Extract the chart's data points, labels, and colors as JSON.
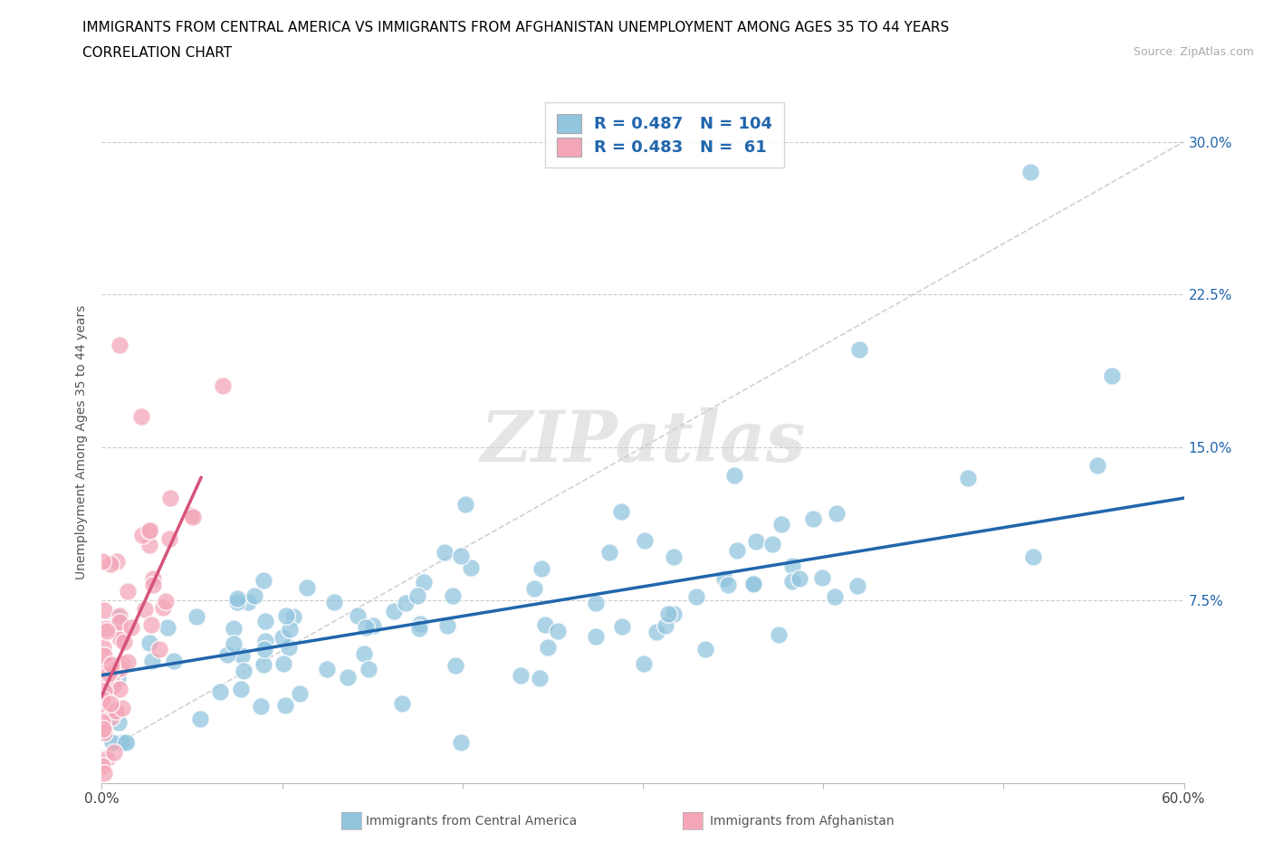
{
  "title_line1": "IMMIGRANTS FROM CENTRAL AMERICA VS IMMIGRANTS FROM AFGHANISTAN UNEMPLOYMENT AMONG AGES 35 TO 44 YEARS",
  "title_line2": "CORRELATION CHART",
  "source": "Source: ZipAtlas.com",
  "ylabel": "Unemployment Among Ages 35 to 44 years",
  "xlim": [
    0.0,
    0.6
  ],
  "ylim": [
    -0.015,
    0.32
  ],
  "yticks": [
    0.0,
    0.075,
    0.15,
    0.225,
    0.3
  ],
  "xticks": [
    0.0,
    0.1,
    0.2,
    0.3,
    0.4,
    0.5,
    0.6
  ],
  "R_blue": 0.487,
  "N_blue": 104,
  "R_pink": 0.483,
  "N_pink": 61,
  "color_blue": "#92c5de",
  "color_pink": "#f4a6b8",
  "legend_label_blue": "Immigrants from Central America",
  "legend_label_pink": "Immigrants from Afghanistan",
  "watermark": "ZIPatlas",
  "blue_trendline_x": [
    0.0,
    0.6
  ],
  "blue_trendline_y": [
    0.038,
    0.125
  ],
  "pink_trendline_x": [
    0.0,
    0.055
  ],
  "pink_trendline_y": [
    0.028,
    0.135
  ],
  "diag_line_x": [
    0.0,
    0.6
  ],
  "diag_line_y": [
    0.0,
    0.3
  ],
  "grid_yticks": [
    0.075,
    0.15,
    0.225,
    0.3
  ],
  "title_fontsize": 11,
  "axis_label_fontsize": 10,
  "tick_fontsize": 11,
  "legend_fontsize": 13
}
